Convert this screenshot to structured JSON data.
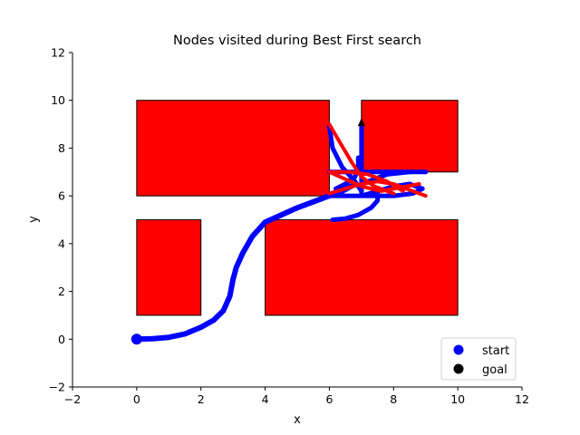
{
  "chart_data": {
    "type": "scatter",
    "title": "Nodes visited during Best First search",
    "xlabel": "x",
    "ylabel": "y",
    "xlim": [
      -2,
      12
    ],
    "ylim": [
      -2,
      12
    ],
    "x_ticks": [
      -2,
      0,
      2,
      4,
      6,
      8,
      10,
      12
    ],
    "y_ticks": [
      -2,
      0,
      2,
      4,
      6,
      8,
      10,
      12
    ],
    "x_tick_labels": [
      "−2",
      "0",
      "2",
      "4",
      "6",
      "8",
      "10",
      "12"
    ],
    "y_tick_labels": [
      "−2",
      "0",
      "2",
      "4",
      "6",
      "8",
      "10",
      "12"
    ],
    "grid": false,
    "legend_position": "lower-right",
    "obstacles": [
      {
        "x": 0,
        "y": 6,
        "w": 6,
        "h": 4
      },
      {
        "x": 7,
        "y": 7,
        "w": 3,
        "h": 3
      },
      {
        "x": 0,
        "y": 1,
        "w": 2,
        "h": 4
      },
      {
        "x": 4,
        "y": 1,
        "w": 6,
        "h": 4
      }
    ],
    "obstacle_color": "#ff0000",
    "visited_blue_path": [
      [
        0,
        0
      ],
      [
        0.5,
        0.02
      ],
      [
        1,
        0.08
      ],
      [
        1.5,
        0.22
      ],
      [
        2,
        0.5
      ],
      [
        2.4,
        0.8
      ],
      [
        2.7,
        1.2
      ],
      [
        2.9,
        1.8
      ],
      [
        3.0,
        2.5
      ],
      [
        3.1,
        3.0
      ],
      [
        3.3,
        3.6
      ],
      [
        3.6,
        4.3
      ],
      [
        4.0,
        4.9
      ],
      [
        4.5,
        5.2
      ],
      [
        5.0,
        5.5
      ],
      [
        5.5,
        5.75
      ],
      [
        6.0,
        6.0
      ],
      [
        6.4,
        6.2
      ],
      [
        6.8,
        6.5
      ]
    ],
    "visited_blue_branches": [
      [
        [
          6.0,
          6.0
        ],
        [
          6.5,
          6.0
        ],
        [
          7.0,
          6.0
        ],
        [
          7.5,
          6.0
        ],
        [
          8.0,
          6.0
        ]
      ],
      [
        [
          6.0,
          7.0
        ],
        [
          6.5,
          7.0
        ],
        [
          7.0,
          7.0
        ],
        [
          7.5,
          7.0
        ],
        [
          8.0,
          7.0
        ],
        [
          8.5,
          7.0
        ],
        [
          9.0,
          7.0
        ]
      ],
      [
        [
          7.0,
          6.0
        ],
        [
          7.0,
          6.5
        ],
        [
          7.0,
          7.0
        ],
        [
          7.0,
          7.5
        ],
        [
          7.0,
          8.0
        ],
        [
          7.0,
          8.5
        ],
        [
          7.0,
          9.0
        ]
      ],
      [
        [
          6.1,
          5.0
        ],
        [
          6.5,
          5.05
        ],
        [
          6.9,
          5.2
        ],
        [
          7.3,
          5.5
        ],
        [
          7.5,
          5.8
        ],
        [
          7.5,
          6.3
        ]
      ],
      [
        [
          6.0,
          8.9
        ],
        [
          6.1,
          8.0
        ],
        [
          6.4,
          7.2
        ],
        [
          6.8,
          6.6
        ],
        [
          7.0,
          6.2
        ]
      ],
      [
        [
          6.9,
          7.6
        ],
        [
          6.9,
          7.2
        ],
        [
          6.8,
          6.8
        ],
        [
          6.5,
          6.5
        ],
        [
          6.2,
          6.3
        ]
      ],
      [
        [
          7.0,
          6.0
        ],
        [
          7.5,
          6.2
        ],
        [
          8.0,
          6.4
        ],
        [
          8.5,
          6.5
        ],
        [
          8.9,
          6.3
        ],
        [
          8.6,
          6.1
        ],
        [
          8.0,
          6.0
        ]
      ],
      [
        [
          7.0,
          6.5
        ],
        [
          7.8,
          6.9
        ],
        [
          8.5,
          7.0
        ]
      ]
    ],
    "visited_red_branches": [
      [
        [
          6.0,
          9.0
        ],
        [
          6.3,
          8.3
        ],
        [
          6.7,
          7.4
        ],
        [
          7.0,
          6.8
        ],
        [
          7.4,
          6.4
        ],
        [
          8.0,
          6.1
        ]
      ],
      [
        [
          6.0,
          6.1
        ],
        [
          6.5,
          6.3
        ],
        [
          7.0,
          6.5
        ],
        [
          7.5,
          6.6
        ],
        [
          8.0,
          6.5
        ],
        [
          8.6,
          6.2
        ],
        [
          9.0,
          6.0
        ]
      ],
      [
        [
          6.1,
          7.0
        ],
        [
          6.6,
          7.0
        ],
        [
          7.2,
          6.9
        ],
        [
          7.8,
          6.6
        ],
        [
          8.3,
          6.2
        ]
      ],
      [
        [
          6.0,
          7.0
        ],
        [
          6.5,
          6.7
        ],
        [
          7.0,
          6.4
        ],
        [
          7.6,
          6.2
        ],
        [
          8.4,
          6.4
        ],
        [
          8.8,
          6.5
        ]
      ]
    ],
    "start": {
      "label": "start",
      "x": 0,
      "y": 0,
      "color": "#0000ff"
    },
    "goal": {
      "label": "goal",
      "x": 7,
      "y": 9,
      "color": "#000000"
    },
    "series_colors": {
      "blue": "#0000ff",
      "red": "#ff0000"
    },
    "legend_entries": [
      {
        "label": "start",
        "color": "#0000ff"
      },
      {
        "label": "goal",
        "color": "#000000"
      }
    ]
  }
}
